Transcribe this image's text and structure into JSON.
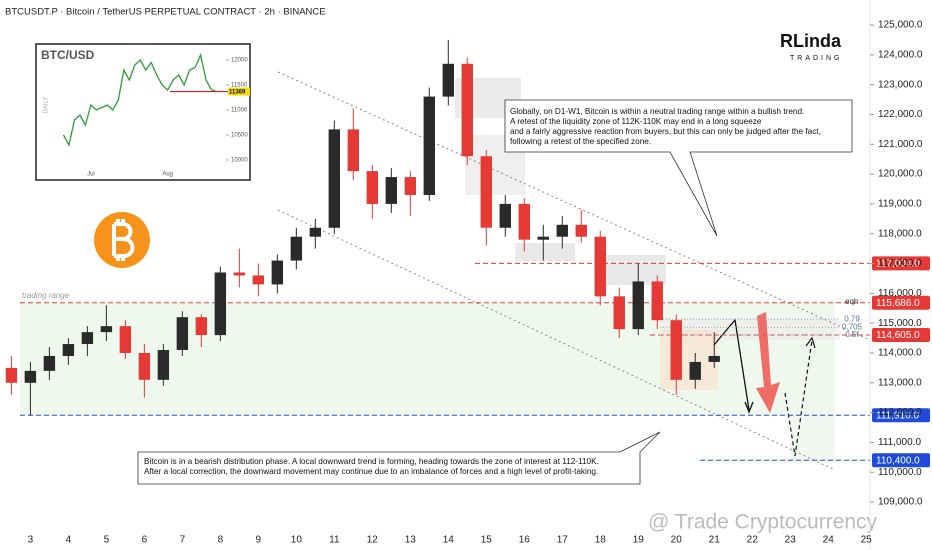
{
  "chart_data": [
    {
      "type": "candlestick",
      "title": "BTCUSDT.P · Bitcoin / TetherUS PERPETUAL CONTRACT · 2h · BINANCE",
      "up_color": "#2a2a2a",
      "down_color": "#e53935",
      "x": [
        2.5,
        3.0,
        3.5,
        4.0,
        4.5,
        5.0,
        5.5,
        6.0,
        6.5,
        7.0,
        7.5,
        8.0,
        8.5,
        9.0,
        9.5,
        10.0,
        10.5,
        11.0,
        11.5,
        12.0,
        12.5,
        13.0,
        13.5,
        14.0,
        14.5,
        15.0,
        15.5,
        16.0,
        16.5,
        17.0,
        17.5,
        18.0,
        18.5,
        19.0,
        19.5,
        20.0,
        20.5,
        21.0
      ],
      "open": [
        113500,
        113000,
        113400,
        113900,
        114300,
        114700,
        114900,
        114000,
        113100,
        114100,
        115200,
        114600,
        116700,
        116600,
        116300,
        117100,
        117900,
        118200,
        121500,
        120100,
        119000,
        119900,
        119300,
        122600,
        123700,
        120600,
        118200,
        119000,
        117800,
        117900,
        118300,
        117900,
        115900,
        114800,
        116400,
        115100,
        113100,
        113700
      ],
      "high": [
        113900,
        113700,
        114200,
        114500,
        114900,
        115600,
        115100,
        114300,
        114300,
        115400,
        115300,
        116900,
        117500,
        117000,
        117300,
        118200,
        118500,
        121800,
        122200,
        120300,
        120200,
        120100,
        122900,
        124500,
        123900,
        120800,
        119300,
        119200,
        118300,
        118600,
        118800,
        118100,
        116200,
        117000,
        116600,
        115300,
        114000,
        114700
      ],
      "low": [
        112600,
        111900,
        113100,
        113600,
        113900,
        114400,
        113800,
        112500,
        112900,
        113900,
        114200,
        114400,
        116200,
        115900,
        116000,
        116800,
        117500,
        118000,
        119800,
        118500,
        118700,
        118600,
        119100,
        122300,
        120300,
        117600,
        117900,
        117400,
        117100,
        117500,
        117700,
        115600,
        114500,
        114600,
        114800,
        112600,
        112800,
        113500
      ],
      "close": [
        113000,
        113400,
        113900,
        114300,
        114700,
        114900,
        114000,
        113100,
        114100,
        115200,
        114600,
        116700,
        116600,
        116300,
        117100,
        117900,
        118200,
        121500,
        120100,
        119000,
        119900,
        119300,
        122600,
        123700,
        120600,
        118200,
        119000,
        117800,
        117900,
        118300,
        117900,
        115900,
        114800,
        116400,
        115100,
        113100,
        113700,
        113900
      ],
      "xlim": [
        2.2,
        25.1
      ],
      "xticks": [
        3,
        4,
        5,
        6,
        7,
        8,
        9,
        10,
        11,
        12,
        13,
        14,
        15,
        16,
        17,
        18,
        19,
        20,
        21,
        22,
        23,
        24,
        25
      ],
      "ylim": [
        108230,
        125840
      ],
      "yticks": [
        {
          "value": 109000,
          "label": "109,000.0"
        },
        {
          "value": 110000,
          "label": "110,000.0"
        },
        {
          "value": 111000,
          "label": "111,000.0"
        },
        {
          "value": 112000,
          "label": "112,000.0"
        },
        {
          "value": 113000,
          "label": "113,000.0"
        },
        {
          "value": 114000,
          "label": "114,000.0"
        },
        {
          "value": 115000,
          "label": "115,000.0"
        },
        {
          "value": 116000,
          "label": "116,000.0"
        },
        {
          "value": 117000,
          "label": "117,000.0"
        },
        {
          "value": 118000,
          "label": "118,000.0"
        },
        {
          "value": 119000,
          "label": "119,000.0"
        },
        {
          "value": 120000,
          "label": "120,000.0"
        },
        {
          "value": 121000,
          "label": "121,000.0"
        },
        {
          "value": 122000,
          "label": "122,000.0"
        },
        {
          "value": 123000,
          "label": "123,000.0"
        },
        {
          "value": 124000,
          "label": "124,000.0"
        },
        {
          "value": 125000,
          "label": "125,000.0"
        }
      ],
      "levels": [
        {
          "value": 117004,
          "label": "117,004.0",
          "color": "#e53935"
        },
        {
          "value": 115686,
          "label": "115,686.0",
          "color": "#e53935"
        },
        {
          "value": 114605,
          "label": "114,605.0",
          "color": "#e53935"
        },
        {
          "value": 111910,
          "label": "111,910.0",
          "color": "#1e4bd8"
        },
        {
          "value": 110400,
          "label": "110,400.0",
          "color": "#1e4bd8"
        }
      ],
      "fib_labels": [
        {
          "value": 115130,
          "label": "0.79"
        },
        {
          "value": 114860,
          "label": "0.705"
        },
        {
          "value": 114605,
          "label": "0.5f"
        }
      ],
      "level_note": "eqh",
      "range_label": "trading range",
      "annotations": [
        {
          "lines": [
            "Globally, on D1-W1, Bitcoin is within a neutral trading range within a bullish trend.",
            "A retest of the liquidity zone of 112K-110K may end in a long squeeze",
            "and a fairly aggressive reaction from buyers, but this can only be judged after the fact,",
            "following a retest of the specified zone."
          ]
        },
        {
          "lines": [
            "Bitcoin is in a bearish distribution phase. A local downward trend is forming, heading towards the zone of interest at 112-110K.",
            "After a local correction, the downward movement may continue due to an imbalance of forces and a high level of profit-taking."
          ]
        }
      ],
      "logo": {
        "name": "RLinda",
        "sub": "TRADING"
      },
      "watermark": "@ Trade Cryptocurrency"
    },
    {
      "type": "line",
      "title": "BTC/USD",
      "ylabel": "DAILY",
      "color": "#2e9e3a",
      "x": [
        0,
        1,
        2,
        3,
        4,
        5,
        6,
        7,
        8,
        9,
        10,
        11,
        12,
        13,
        14,
        15,
        16,
        17,
        18,
        19,
        20,
        21,
        22,
        23,
        24,
        25,
        26,
        27,
        28
      ],
      "values": [
        10500,
        10300,
        10800,
        10900,
        10700,
        11100,
        11000,
        11050,
        11100,
        11000,
        11200,
        11800,
        11600,
        11900,
        12000,
        11800,
        11950,
        11700,
        11500,
        11400,
        11600,
        11700,
        11500,
        11800,
        11850,
        12100,
        11600,
        11400,
        11369
      ],
      "last_price": 11369,
      "xlim": [
        -1,
        30
      ],
      "xticks": [
        {
          "value": 5,
          "label": "Jul"
        },
        {
          "value": 19,
          "label": "Aug"
        }
      ],
      "ylim": [
        9840,
        12240
      ],
      "yticks": [
        10000,
        10500,
        11000,
        11500,
        12000
      ]
    }
  ]
}
